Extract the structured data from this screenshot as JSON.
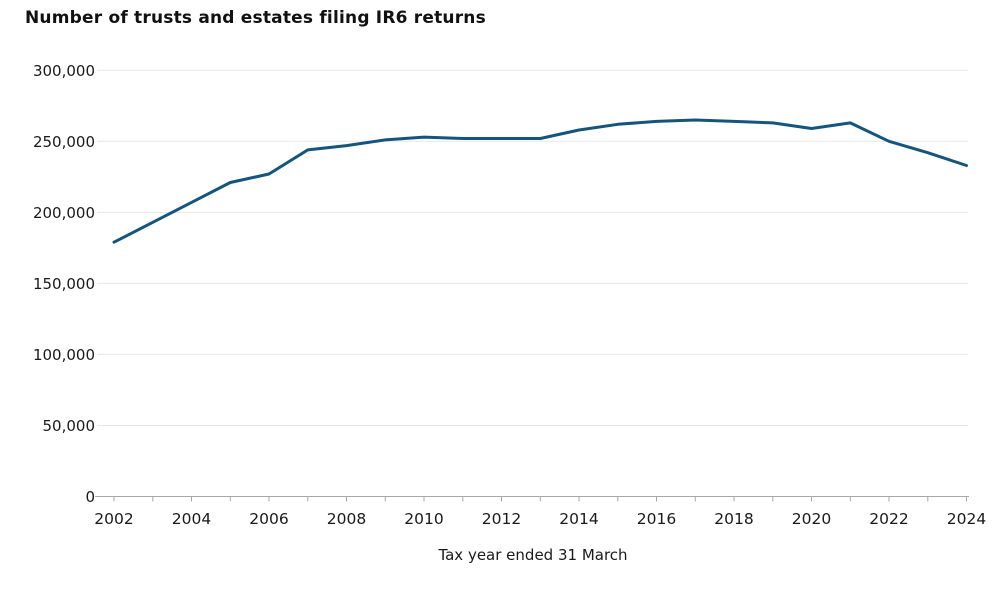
{
  "page": {
    "background_color": "#FFFFFF"
  },
  "chart_data": {
    "type": "line",
    "title": "Number of trusts and estates filing IR6 returns",
    "xlabel": "Tax year ended 31 March",
    "ylabel": "",
    "x": [
      2002,
      2003,
      2004,
      2005,
      2006,
      2007,
      2008,
      2009,
      2010,
      2011,
      2012,
      2013,
      2014,
      2015,
      2016,
      2017,
      2018,
      2019,
      2020,
      2021,
      2022,
      2023,
      2024
    ],
    "values": [
      179000,
      193000,
      207000,
      221000,
      227000,
      244000,
      247000,
      251000,
      253000,
      252000,
      252000,
      252000,
      258000,
      262000,
      264000,
      265000,
      264000,
      263000,
      259000,
      263000,
      250000,
      242000,
      233000
    ],
    "ylim": [
      0,
      300000
    ],
    "yticks": [
      0,
      50000,
      100000,
      150000,
      200000,
      250000,
      300000
    ],
    "ytick_labels": [
      "0",
      "50,000",
      "100,000",
      "150,000",
      "200,000",
      "250,000",
      "300,000"
    ],
    "xtick_years": [
      2002,
      2003,
      2004,
      2005,
      2006,
      2007,
      2008,
      2009,
      2010,
      2011,
      2012,
      2013,
      2014,
      2015,
      2016,
      2017,
      2018,
      2019,
      2020,
      2021,
      2022,
      2023,
      2024
    ],
    "xtick_label_years": [
      "2002",
      "2004",
      "2006",
      "2008",
      "2010",
      "2012",
      "2014",
      "2016",
      "2018",
      "2020",
      "2022",
      "2024"
    ],
    "grid": "horizontal",
    "legend": "none",
    "colors": {
      "line": "#14557D",
      "grid": "#E7E7E7",
      "axis": "#A8A8A8",
      "tick_text": "#1A1A1A",
      "title_text": "#111111"
    }
  }
}
